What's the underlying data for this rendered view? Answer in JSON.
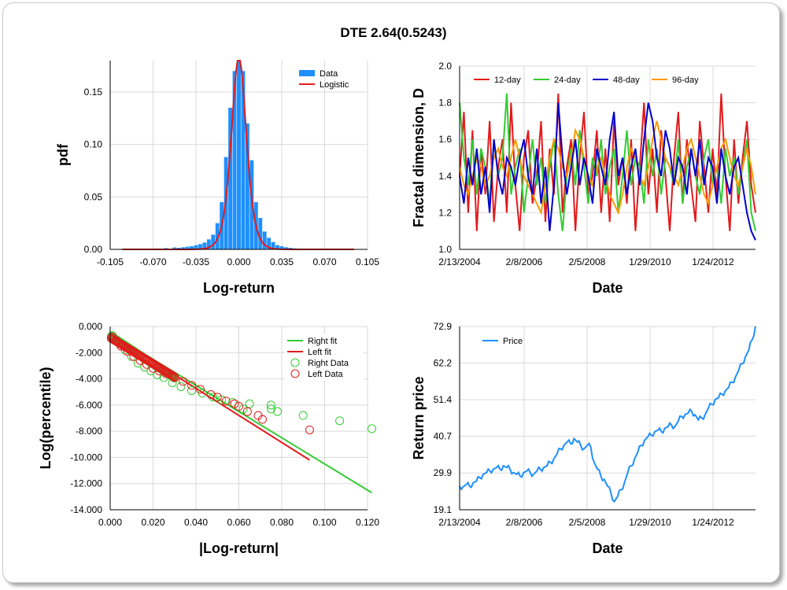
{
  "title": "DTE 2.64(0.5243)",
  "colors": {
    "blue": "#1e90ff",
    "red": "#e31a1c",
    "green": "#33cc33",
    "darkblue": "#0000cc",
    "orange": "#ff9900",
    "grid": "#d9d9d9"
  },
  "chart_data": [
    {
      "id": "pdf",
      "type": "bar",
      "xlabel": "Log-return",
      "ylabel": "pdf",
      "xlim": [
        -0.105,
        0.105
      ],
      "ylim": [
        0,
        0.18
      ],
      "xticks": [
        "-0.105",
        "-0.070",
        "-0.035",
        "0.000",
        "0.035",
        "0.070",
        "0.105"
      ],
      "yticks": [
        "0.00",
        "0.05",
        "0.10",
        "0.15"
      ],
      "legend": [
        "Data",
        "Logistic"
      ],
      "bins": [
        -0.0945,
        -0.0875,
        -0.0805,
        -0.0735,
        -0.0665,
        -0.0595,
        -0.0525,
        -0.049,
        -0.0455,
        -0.042,
        -0.0385,
        -0.035,
        -0.0315,
        -0.028,
        -0.0245,
        -0.021,
        -0.0175,
        -0.014,
        -0.0105,
        -0.007,
        -0.0035,
        0.0,
        0.0035,
        0.007,
        0.0105,
        0.014,
        0.0175,
        0.021,
        0.0245,
        0.028,
        0.0315,
        0.035,
        0.0385,
        0.042,
        0.0455,
        0.049,
        0.0525,
        0.0595,
        0.0665,
        0.0735,
        0.0805
      ],
      "values": [
        0.0005,
        0.0003,
        0.0004,
        0.0005,
        0.0008,
        0.0012,
        0.0018,
        0.0015,
        0.002,
        0.0025,
        0.003,
        0.004,
        0.005,
        0.0065,
        0.0095,
        0.014,
        0.025,
        0.045,
        0.088,
        0.135,
        0.17,
        0.185,
        0.17,
        0.12,
        0.085,
        0.045,
        0.03,
        0.017,
        0.011,
        0.007,
        0.004,
        0.003,
        0.002,
        0.0015,
        0.001,
        0.0008,
        0.0006,
        0.0005,
        0.0004,
        0.0004,
        0.0003
      ],
      "fit_scale": 0.0041
    },
    {
      "id": "fractal",
      "type": "line",
      "xlabel": "Date",
      "ylabel": "Fractal dimension, D",
      "ylim": [
        1.0,
        2.0
      ],
      "xticks": [
        "2/13/2004",
        "2/8/2006",
        "2/5/2008",
        "1/29/2010",
        "1/24/2012"
      ],
      "yticks": [
        "1.0",
        "1.2",
        "1.4",
        "1.6",
        "1.8",
        "2.0"
      ],
      "series": [
        {
          "name": "12-day",
          "values": [
            1.4,
            1.75,
            1.2,
            1.65,
            1.1,
            1.55,
            1.3,
            1.7,
            1.15,
            1.45,
            1.6,
            1.2,
            1.8,
            1.35,
            1.1,
            1.5,
            1.65,
            1.25,
            1.4,
            1.7,
            1.15,
            1.55,
            1.3,
            1.85,
            1.2,
            1.45,
            1.6,
            1.1,
            1.5,
            1.75,
            1.3,
            1.4,
            1.65,
            1.2,
            1.55,
            1.15,
            1.7,
            1.35,
            1.5,
            1.25,
            1.6,
            1.1,
            1.45,
            1.8,
            1.3,
            1.55,
            1.2,
            1.65,
            1.4,
            1.1,
            1.5,
            1.75,
            1.25,
            1.6,
            1.35,
            1.15,
            1.7,
            1.45,
            1.2,
            1.55,
            1.3,
            1.85,
            1.4,
            1.1,
            1.6,
            1.25,
            1.5,
            1.7,
            1.35,
            1.2
          ]
        },
        {
          "name": "24-day",
          "values": [
            1.8,
            1.5,
            1.35,
            1.6,
            1.3,
            1.55,
            1.45,
            1.25,
            1.6,
            1.4,
            1.5,
            1.85,
            1.3,
            1.45,
            1.55,
            1.2,
            1.4,
            1.6,
            1.35,
            1.5,
            1.25,
            1.45,
            1.6,
            1.3,
            1.1,
            1.4,
            1.55,
            1.35,
            1.65,
            1.45,
            1.25,
            1.5,
            1.4,
            1.6,
            1.3,
            1.45,
            1.55,
            1.2,
            1.4,
            1.65,
            1.35,
            1.5,
            1.45,
            1.25,
            1.6,
            1.4,
            1.55,
            1.3,
            1.5,
            1.45,
            1.35,
            1.6,
            1.25,
            1.45,
            1.55,
            1.4,
            1.3,
            1.5,
            1.6,
            1.35,
            1.45,
            1.25,
            1.55,
            1.4,
            1.5,
            1.3,
            1.45,
            1.6,
            1.2,
            1.1
          ]
        },
        {
          "name": "48-day",
          "values": [
            1.4,
            1.25,
            1.5,
            1.35,
            1.55,
            1.3,
            1.45,
            1.2,
            1.6,
            1.4,
            1.3,
            1.5,
            1.45,
            1.35,
            1.5,
            1.6,
            1.4,
            1.3,
            1.55,
            1.25,
            1.45,
            1.1,
            1.35,
            1.8,
            1.5,
            1.3,
            1.45,
            1.6,
            1.35,
            1.5,
            1.4,
            1.25,
            1.55,
            1.45,
            1.35,
            1.6,
            1.75,
            1.4,
            1.5,
            1.3,
            1.45,
            1.55,
            1.35,
            1.6,
            1.8,
            1.7,
            1.5,
            1.4,
            1.65,
            1.55,
            1.35,
            1.5,
            1.45,
            1.3,
            1.55,
            1.4,
            1.6,
            1.35,
            1.5,
            1.45,
            1.25,
            1.55,
            1.4,
            1.3,
            1.45,
            1.5,
            1.35,
            1.2,
            1.1,
            1.05
          ]
        },
        {
          "name": "96-day",
          "values": [
            1.45,
            1.35,
            1.3,
            1.4,
            1.5,
            1.45,
            1.35,
            1.4,
            1.5,
            1.55,
            1.45,
            1.4,
            1.5,
            1.6,
            1.5,
            1.4,
            1.35,
            1.3,
            1.25,
            1.2,
            1.35,
            1.5,
            1.6,
            1.55,
            1.45,
            1.4,
            1.5,
            1.65,
            1.6,
            1.5,
            1.4,
            1.35,
            1.45,
            1.5,
            1.4,
            1.3,
            1.25,
            1.2,
            1.3,
            1.45,
            1.55,
            1.5,
            1.4,
            1.35,
            1.45,
            1.6,
            1.7,
            1.6,
            1.5,
            1.45,
            1.4,
            1.35,
            1.45,
            1.55,
            1.6,
            1.5,
            1.4,
            1.3,
            1.25,
            1.35,
            1.45,
            1.55,
            1.6,
            1.5,
            1.4,
            1.35,
            1.45,
            1.55,
            1.45,
            1.3
          ]
        }
      ]
    },
    {
      "id": "tail",
      "type": "scatter",
      "xlabel": "|Log-return|",
      "ylabel": "Log(percentile)",
      "xlim": [
        0,
        0.12
      ],
      "ylim": [
        -14,
        0
      ],
      "xticks": [
        "0.000",
        "0.020",
        "0.040",
        "0.060",
        "0.080",
        "0.100",
        "0.120"
      ],
      "yticks": [
        "0.000",
        "-2.000",
        "-4.000",
        "-6.000",
        "-8.000",
        "-10.000",
        "-12.000",
        "-14.000"
      ],
      "legend": [
        "Right fit",
        "Left fit",
        "Right Data",
        "Left Data"
      ],
      "right_fit": [
        [
          0,
          -0.5
        ],
        [
          0.122,
          -12.7
        ]
      ],
      "left_fit": [
        [
          0,
          -0.6
        ],
        [
          0.093,
          -10.2
        ]
      ],
      "right_data": [
        [
          0.001,
          -0.7
        ],
        [
          0.004,
          -1.2
        ],
        [
          0.007,
          -1.8
        ],
        [
          0.01,
          -2.3
        ],
        [
          0.013,
          -2.8
        ],
        [
          0.016,
          -3.1
        ],
        [
          0.019,
          -3.4
        ],
        [
          0.022,
          -3.7
        ],
        [
          0.025,
          -3.9
        ],
        [
          0.029,
          -4.3
        ],
        [
          0.033,
          -4.6
        ],
        [
          0.038,
          -4.9
        ],
        [
          0.043,
          -5.1
        ],
        [
          0.048,
          -5.4
        ],
        [
          0.052,
          -5.6
        ],
        [
          0.057,
          -5.8
        ],
        [
          0.062,
          -6.3
        ],
        [
          0.065,
          -5.9
        ],
        [
          0.075,
          -6.0
        ],
        [
          0.075,
          -6.3
        ],
        [
          0.078,
          -6.5
        ],
        [
          0.09,
          -6.8
        ],
        [
          0.107,
          -7.2
        ],
        [
          0.122,
          -7.8
        ]
      ],
      "left_data": [
        [
          0.001,
          -0.8
        ],
        [
          0.003,
          -1.1
        ],
        [
          0.005,
          -1.5
        ],
        [
          0.008,
          -1.9
        ],
        [
          0.011,
          -2.3
        ],
        [
          0.014,
          -2.6
        ],
        [
          0.017,
          -2.9
        ],
        [
          0.02,
          -3.2
        ],
        [
          0.023,
          -3.4
        ],
        [
          0.026,
          -3.6
        ],
        [
          0.03,
          -3.9
        ],
        [
          0.034,
          -4.2
        ],
        [
          0.038,
          -4.5
        ],
        [
          0.042,
          -4.8
        ],
        [
          0.047,
          -5.2
        ],
        [
          0.05,
          -5.4
        ],
        [
          0.054,
          -5.7
        ],
        [
          0.058,
          -5.9
        ],
        [
          0.06,
          -6.1
        ],
        [
          0.064,
          -6.5
        ],
        [
          0.069,
          -6.8
        ],
        [
          0.071,
          -7.1
        ],
        [
          0.093,
          -7.9
        ]
      ]
    },
    {
      "id": "price",
      "type": "line",
      "xlabel": "Date",
      "ylabel": "Return price",
      "ylim": [
        19.1,
        72.9
      ],
      "xticks": [
        "2/13/2004",
        "2/8/2006",
        "2/5/2008",
        "1/29/2010",
        "1/24/2012"
      ],
      "yticks": [
        "72.9",
        "62.2",
        "51.4",
        "40.7",
        "29.9",
        "19.1"
      ],
      "legend": [
        "Price"
      ],
      "series": [
        {
          "name": "Price",
          "values": [
            26,
            25.8,
            26.5,
            26,
            27,
            27.5,
            28.5,
            29.5,
            30,
            30.5,
            31,
            31.5,
            31,
            32,
            31.5,
            31,
            30,
            29.5,
            29,
            30,
            30.5,
            30,
            29.5,
            30.5,
            31,
            31.5,
            32,
            33,
            34,
            35.5,
            37,
            38,
            39,
            38.5,
            40,
            39,
            38,
            37,
            38,
            37.5,
            33,
            31,
            29,
            28,
            26,
            24,
            21.5,
            23,
            25,
            27,
            30,
            32,
            34,
            36,
            38,
            39.5,
            40.5,
            41,
            42,
            42.5,
            42,
            43,
            43.5,
            44,
            43.5,
            45,
            46.5,
            47,
            47.5,
            48,
            47,
            45.5,
            46,
            47,
            49,
            50,
            51.5,
            52,
            53,
            54,
            55,
            56.5,
            58,
            60,
            62,
            64,
            66,
            69,
            73
          ]
        }
      ]
    }
  ]
}
